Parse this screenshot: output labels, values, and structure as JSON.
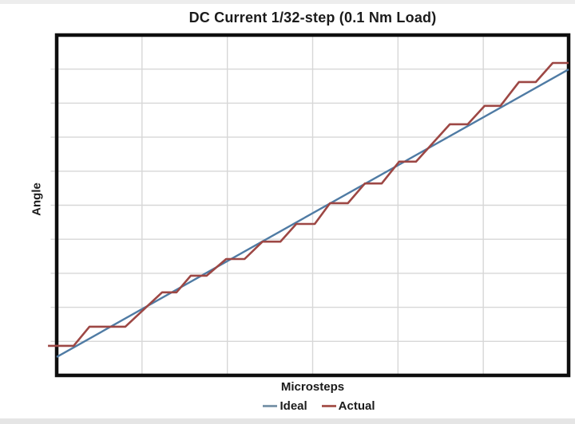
{
  "title": "DC Current 1/32-step (0.1 Nm Load)",
  "x_axis": {
    "label": "Microsteps"
  },
  "y_axis": {
    "label": "Angle"
  },
  "legend": [
    {
      "name": "Ideal",
      "dash_color": "#7f99ad"
    },
    {
      "name": "Actual",
      "dash_color": "#aa5a54"
    }
  ],
  "colors": {
    "frame": "#0e0e0e",
    "gridline": "#d7d7d7",
    "text": "#1b1b1b",
    "ideal_line": "#4f7ba4",
    "actual_line": "#9d4744",
    "background": "#ffffff"
  },
  "chart_data": {
    "type": "line",
    "title": "DC Current 1/32-step (0.1 Nm Load)",
    "xlabel": "Microsteps",
    "ylabel": "Angle",
    "axis_tick_labels": false,
    "grid": true,
    "x_gridline_count": 5,
    "y_gridline_count": 9,
    "legend_position": "bottom",
    "xlim_fraction": [
      0,
      1
    ],
    "ylim_fraction": [
      0,
      1
    ],
    "num_steps_visible": 14,
    "series": [
      {
        "name": "Ideal",
        "shape": "straight-line",
        "color": "#4f7ba4",
        "width": 2.4,
        "points": [
          [
            0.0,
            0.054
          ],
          [
            1.0,
            0.899
          ]
        ]
      },
      {
        "name": "Actual",
        "shape": "staircase",
        "color": "#9d4744",
        "width": 2.6,
        "points": [
          [
            -0.017,
            0.087
          ],
          [
            0.033,
            0.087
          ],
          [
            0.064,
            0.143
          ],
          [
            0.134,
            0.143
          ],
          [
            0.206,
            0.244
          ],
          [
            0.234,
            0.244
          ],
          [
            0.262,
            0.293
          ],
          [
            0.293,
            0.293
          ],
          [
            0.331,
            0.342
          ],
          [
            0.367,
            0.342
          ],
          [
            0.402,
            0.393
          ],
          [
            0.437,
            0.393
          ],
          [
            0.468,
            0.445
          ],
          [
            0.504,
            0.445
          ],
          [
            0.534,
            0.506
          ],
          [
            0.569,
            0.506
          ],
          [
            0.602,
            0.564
          ],
          [
            0.635,
            0.564
          ],
          [
            0.669,
            0.628
          ],
          [
            0.702,
            0.628
          ],
          [
            0.768,
            0.738
          ],
          [
            0.803,
            0.738
          ],
          [
            0.836,
            0.792
          ],
          [
            0.867,
            0.792
          ],
          [
            0.903,
            0.862
          ],
          [
            0.936,
            0.862
          ],
          [
            0.969,
            0.918
          ],
          [
            1.0,
            0.918
          ]
        ]
      }
    ]
  }
}
